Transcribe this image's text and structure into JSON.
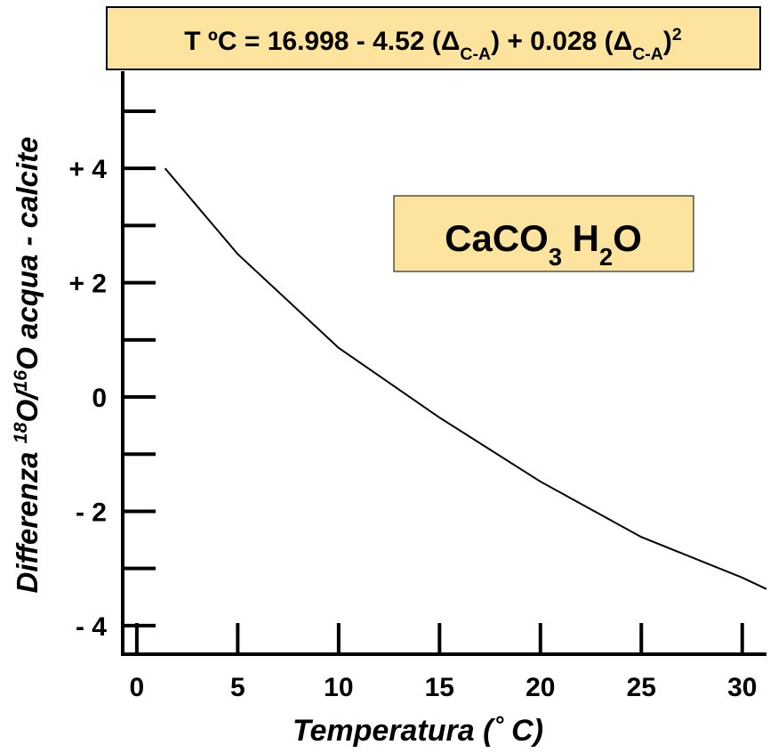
{
  "chart_data": {
    "type": "line",
    "title_parts": [
      {
        "text": "T ºC = 16.998 - 4.52 (Δ"
      },
      {
        "text": "C-A",
        "style": "sub"
      },
      {
        "text": ") + 0.028 (Δ"
      },
      {
        "text": "C-A",
        "style": "sub"
      },
      {
        "text": ")"
      },
      {
        "text": "2",
        "style": "super"
      }
    ],
    "annotation_parts": [
      {
        "text": "CaCO"
      },
      {
        "text": "3",
        "style": "sub"
      },
      {
        "text": "  H"
      },
      {
        "text": "2",
        "style": "sub"
      },
      {
        "text": "O"
      }
    ],
    "x_label": "Temperatura (˚ C)",
    "y_label_parts": [
      {
        "text": "Differenza "
      },
      {
        "text": "18",
        "style": "super"
      },
      {
        "text": "O/"
      },
      {
        "text": "16",
        "style": "super"
      },
      {
        "text": "O acqua - calcite"
      }
    ],
    "series": [
      {
        "color": "#000000",
        "x": [
          1.4,
          5,
          10,
          15,
          20,
          25,
          30,
          31.2
        ],
        "values": [
          4,
          2.5,
          0.86,
          -0.36,
          -1.48,
          -2.45,
          -3.16,
          -3.36
        ]
      }
    ],
    "xlim": [
      -0.7,
      31.2
    ],
    "xticks": [
      0,
      5,
      10,
      15,
      20,
      25,
      30
    ],
    "ylim": [
      -4.5,
      5.7
    ],
    "yticks": [
      {
        "value": -4,
        "label": "- 4"
      },
      {
        "value": -2,
        "label": "- 2"
      },
      0,
      {
        "value": 2,
        "label": "+ 2"
      },
      {
        "value": 4,
        "label": "+ 4"
      }
    ],
    "y_minor_ticks": [
      -3,
      -1,
      1,
      3,
      5
    ],
    "box_color": "#fce39e"
  }
}
